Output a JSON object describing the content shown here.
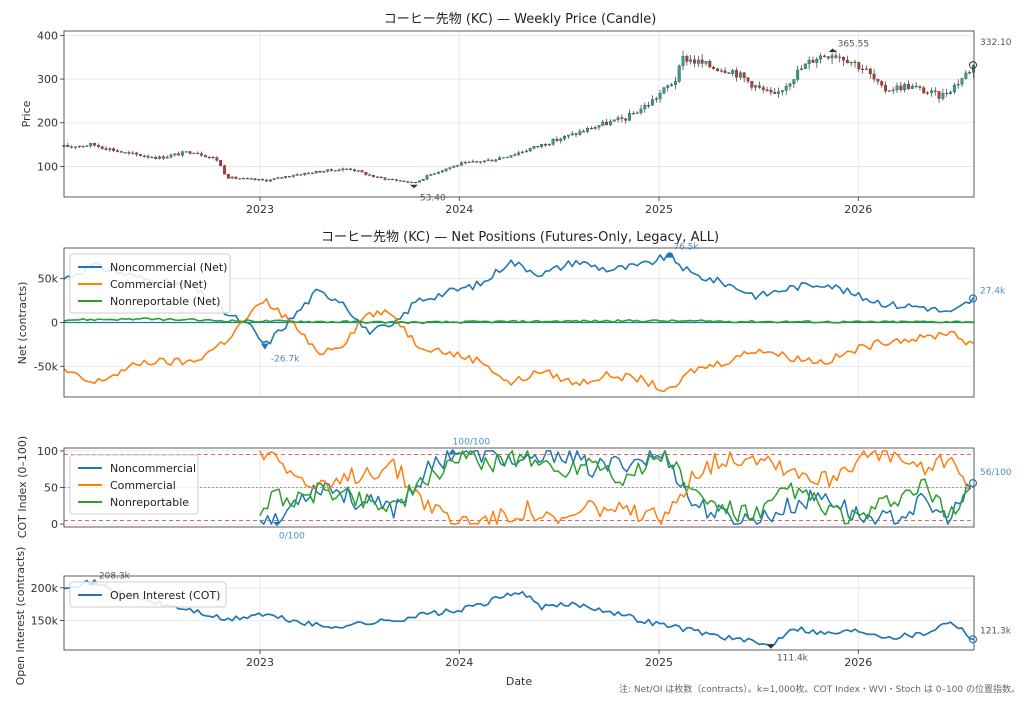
{
  "chart_data": [
    {
      "type": "candlestick",
      "title": "コーヒー先物 (KC) — Weekly Price (Candle)",
      "ylabel": "Price",
      "ylim": [
        30,
        410
      ],
      "y_ticks": [
        "100",
        "200",
        "300",
        "400"
      ],
      "x_ticks": [
        "2023",
        "2024",
        "2025",
        "2026"
      ],
      "series_approx_close": [
        [
          "2022-01-07",
          145
        ],
        [
          "2022-03-01",
          150
        ],
        [
          "2022-05-01",
          130
        ],
        [
          "2022-07-01",
          120
        ],
        [
          "2022-09-01",
          135
        ],
        [
          "2022-10-15",
          115
        ],
        [
          "2022-11-01",
          75
        ],
        [
          "2022-12-15",
          70
        ],
        [
          "2023-01-15",
          68
        ],
        [
          "2023-03-01",
          80
        ],
        [
          "2023-05-01",
          90
        ],
        [
          "2023-06-15",
          95
        ],
        [
          "2023-08-01",
          75
        ],
        [
          "2023-09-15",
          67
        ],
        [
          "2023-10-10",
          62
        ],
        [
          "2023-11-15",
          85
        ],
        [
          "2024-01-01",
          105
        ],
        [
          "2024-03-01",
          115
        ],
        [
          "2024-04-15",
          130
        ],
        [
          "2024-06-01",
          150
        ],
        [
          "2024-08-01",
          175
        ],
        [
          "2024-09-15",
          195
        ],
        [
          "2024-11-01",
          210
        ],
        [
          "2024-12-15",
          245
        ],
        [
          "2025-02-01",
          300
        ],
        [
          "2025-02-15",
          350
        ],
        [
          "2025-04-01",
          330
        ],
        [
          "2025-05-15",
          320
        ],
        [
          "2025-07-01",
          280
        ],
        [
          "2025-08-01",
          260
        ],
        [
          "2025-09-15",
          320
        ],
        [
          "2025-10-15",
          350
        ],
        [
          "2025-11-15",
          360
        ],
        [
          "2025-12-15",
          345
        ],
        [
          "2026-01-15",
          320
        ],
        [
          "2026-02-15",
          275
        ],
        [
          "2026-04-01",
          285
        ],
        [
          "2026-06-01",
          260
        ],
        [
          "2026-07-01",
          290
        ],
        [
          "2026-08-01",
          332
        ]
      ],
      "annotations": {
        "max": "365.55",
        "min": "53.40",
        "last": "332.10"
      }
    },
    {
      "type": "line",
      "title": "コーヒー先物 (KC) — Net Positions (Futures-Only, Legacy, ALL)",
      "ylabel": "Net (contracts)",
      "ylim": [
        -85000,
        85000
      ],
      "y_ticks": [
        "50k",
        "0",
        "-50k"
      ],
      "legend": "top-left",
      "series": [
        {
          "name": "Noncommercial (Net)",
          "color": "#1f77b4",
          "points": [
            [
              "2022-01-07",
              50000
            ],
            [
              "2022-03-01",
              65000
            ],
            [
              "2022-06-01",
              50000
            ],
            [
              "2022-09-01",
              40000
            ],
            [
              "2022-11-01",
              10000
            ],
            [
              "2022-12-15",
              -5000
            ],
            [
              "2023-01-10",
              -26700
            ],
            [
              "2023-03-01",
              5000
            ],
            [
              "2023-04-15",
              35000
            ],
            [
              "2023-06-01",
              25000
            ],
            [
              "2023-07-15",
              -10000
            ],
            [
              "2023-09-01",
              -5000
            ],
            [
              "2023-10-15",
              25000
            ],
            [
              "2023-12-15",
              35000
            ],
            [
              "2024-02-15",
              45000
            ],
            [
              "2024-04-01",
              70000
            ],
            [
              "2024-06-01",
              55000
            ],
            [
              "2024-08-01",
              70000
            ],
            [
              "2024-10-01",
              60000
            ],
            [
              "2024-12-01",
              65000
            ],
            [
              "2025-01-20",
              76500
            ],
            [
              "2025-03-01",
              55000
            ],
            [
              "2025-05-01",
              45000
            ],
            [
              "2025-07-01",
              30000
            ],
            [
              "2025-09-01",
              40000
            ],
            [
              "2025-11-01",
              45000
            ],
            [
              "2026-01-01",
              30000
            ],
            [
              "2026-03-01",
              20000
            ],
            [
              "2026-05-01",
              18000
            ],
            [
              "2026-06-20",
              10000
            ],
            [
              "2026-08-01",
              27400
            ]
          ]
        },
        {
          "name": "Commercial (Net)",
          "color": "#ff7f0e",
          "points": [
            [
              "2022-01-07",
              -55000
            ],
            [
              "2022-03-01",
              -70000
            ],
            [
              "2022-06-01",
              -45000
            ],
            [
              "2022-09-01",
              -45000
            ],
            [
              "2022-11-01",
              -20000
            ],
            [
              "2022-12-15",
              10000
            ],
            [
              "2023-01-10",
              25000
            ],
            [
              "2023-03-01",
              0
            ],
            [
              "2023-04-15",
              -35000
            ],
            [
              "2023-06-01",
              -25000
            ],
            [
              "2023-07-15",
              10000
            ],
            [
              "2023-09-01",
              10000
            ],
            [
              "2023-10-15",
              -25000
            ],
            [
              "2023-12-15",
              -35000
            ],
            [
              "2024-02-15",
              -45000
            ],
            [
              "2024-04-01",
              -70000
            ],
            [
              "2024-06-01",
              -55000
            ],
            [
              "2024-08-01",
              -70000
            ],
            [
              "2024-10-01",
              -60000
            ],
            [
              "2024-12-01",
              -65000
            ],
            [
              "2025-01-20",
              -80000
            ],
            [
              "2025-03-01",
              -55000
            ],
            [
              "2025-05-01",
              -45000
            ],
            [
              "2025-07-01",
              -30000
            ],
            [
              "2025-09-01",
              -40000
            ],
            [
              "2025-11-01",
              -45000
            ],
            [
              "2026-01-01",
              -30000
            ],
            [
              "2026-03-01",
              -20000
            ],
            [
              "2026-05-01",
              -18000
            ],
            [
              "2026-06-20",
              -10000
            ],
            [
              "2026-08-01",
              -28000
            ]
          ]
        },
        {
          "name": "Nonreportable (Net)",
          "color": "#2ca02c",
          "points": [
            [
              "2022-01-07",
              3000
            ],
            [
              "2022-06-01",
              4000
            ],
            [
              "2022-11-01",
              2000
            ],
            [
              "2023-04-15",
              1000
            ],
            [
              "2023-10-15",
              0
            ],
            [
              "2024-04-01",
              1000
            ],
            [
              "2024-12-01",
              2000
            ],
            [
              "2025-07-01",
              1000
            ],
            [
              "2026-01-01",
              500
            ],
            [
              "2026-08-01",
              1000
            ]
          ]
        }
      ],
      "annotations": {
        "max": "76.5k",
        "min": "-26.7k",
        "last": "27.4k"
      }
    },
    {
      "type": "line",
      "ylabel": "COT Index (0–100)",
      "ylim": [
        -4,
        104
      ],
      "y_ticks": [
        "100",
        "50",
        "0"
      ],
      "legend": "top-left",
      "reference_lines": [
        95,
        50,
        5
      ],
      "series": [
        {
          "name": "Noncommercial",
          "color": "#1f77b4",
          "points": [
            [
              "2023-01-01",
              10
            ],
            [
              "2023-02-01",
              0
            ],
            [
              "2023-03-15",
              40
            ],
            [
              "2023-05-01",
              55
            ],
            [
              "2023-07-01",
              30
            ],
            [
              "2023-09-01",
              20
            ],
            [
              "2023-11-01",
              70
            ],
            [
              "2023-12-20",
              100
            ],
            [
              "2024-03-01",
              95
            ],
            [
              "2024-05-01",
              80
            ],
            [
              "2024-07-01",
              100
            ],
            [
              "2024-09-01",
              75
            ],
            [
              "2024-11-01",
              85
            ],
            [
              "2025-01-15",
              95
            ],
            [
              "2025-03-01",
              30
            ],
            [
              "2025-05-01",
              10
            ],
            [
              "2025-07-01",
              5
            ],
            [
              "2025-09-01",
              25
            ],
            [
              "2025-11-01",
              40
            ],
            [
              "2026-01-01",
              10
            ],
            [
              "2026-03-01",
              5
            ],
            [
              "2026-05-01",
              30
            ],
            [
              "2026-06-15",
              5
            ],
            [
              "2026-08-01",
              56
            ]
          ]
        },
        {
          "name": "Commercial",
          "color": "#ff7f0e",
          "points": [
            [
              "2023-01-01",
              95
            ],
            [
              "2023-02-01",
              100
            ],
            [
              "2023-03-15",
              60
            ],
            [
              "2023-05-01",
              45
            ],
            [
              "2023-07-01",
              70
            ],
            [
              "2023-09-01",
              80
            ],
            [
              "2023-11-01",
              30
            ],
            [
              "2023-12-20",
              5
            ],
            [
              "2024-03-01",
              5
            ],
            [
              "2024-05-01",
              20
            ],
            [
              "2024-07-01",
              0
            ],
            [
              "2024-09-01",
              25
            ],
            [
              "2024-11-01",
              15
            ],
            [
              "2025-01-15",
              5
            ],
            [
              "2025-03-01",
              70
            ],
            [
              "2025-05-01",
              90
            ],
            [
              "2025-07-01",
              95
            ],
            [
              "2025-09-01",
              75
            ],
            [
              "2025-11-01",
              60
            ],
            [
              "2026-01-01",
              90
            ],
            [
              "2026-03-01",
              95
            ],
            [
              "2026-05-01",
              70
            ],
            [
              "2026-06-15",
              95
            ],
            [
              "2026-08-01",
              44
            ]
          ]
        },
        {
          "name": "Nonreportable",
          "color": "#2ca02c",
          "points": [
            [
              "2023-01-01",
              20
            ],
            [
              "2023-02-01",
              40
            ],
            [
              "2023-03-15",
              30
            ],
            [
              "2023-05-01",
              50
            ],
            [
              "2023-07-01",
              35
            ],
            [
              "2023-09-01",
              25
            ],
            [
              "2023-11-01",
              55
            ],
            [
              "2023-12-20",
              90
            ],
            [
              "2024-03-01",
              85
            ],
            [
              "2024-05-01",
              95
            ],
            [
              "2024-07-01",
              70
            ],
            [
              "2024-09-01",
              90
            ],
            [
              "2024-11-01",
              60
            ],
            [
              "2025-01-15",
              100
            ],
            [
              "2025-03-01",
              40
            ],
            [
              "2025-05-01",
              20
            ],
            [
              "2025-07-01",
              10
            ],
            [
              "2025-09-01",
              50
            ],
            [
              "2025-11-01",
              20
            ],
            [
              "2026-01-01",
              5
            ],
            [
              "2026-03-01",
              30
            ],
            [
              "2026-05-01",
              50
            ],
            [
              "2026-06-15",
              10
            ],
            [
              "2026-08-01",
              60
            ]
          ]
        }
      ],
      "annotations": {
        "max": "100/100",
        "min": "0/100",
        "last": "56/100"
      }
    },
    {
      "type": "line",
      "xlabel": "Date",
      "ylabel": "Open Interest (contracts)",
      "ylim": [
        105000,
        218000
      ],
      "y_ticks": [
        "200k",
        "150k"
      ],
      "x_ticks": [
        "2023",
        "2024",
        "2025",
        "2026"
      ],
      "legend": "top-left",
      "series": [
        {
          "name": "Open Interest (COT)",
          "color": "#1f77b4",
          "points": [
            [
              "2022-01-07",
              203000
            ],
            [
              "2022-03-01",
              208300
            ],
            [
              "2022-05-01",
              190000
            ],
            [
              "2022-07-01",
              175000
            ],
            [
              "2022-09-01",
              165000
            ],
            [
              "2022-11-01",
              150000
            ],
            [
              "2023-01-01",
              160000
            ],
            [
              "2023-03-01",
              150000
            ],
            [
              "2023-05-01",
              140000
            ],
            [
              "2023-07-01",
              145000
            ],
            [
              "2023-09-01",
              150000
            ],
            [
              "2023-11-01",
              160000
            ],
            [
              "2024-01-01",
              165000
            ],
            [
              "2024-03-01",
              180000
            ],
            [
              "2024-04-20",
              195000
            ],
            [
              "2024-06-01",
              170000
            ],
            [
              "2024-08-01",
              175000
            ],
            [
              "2024-10-01",
              165000
            ],
            [
              "2024-12-01",
              150000
            ],
            [
              "2025-02-01",
              140000
            ],
            [
              "2025-04-01",
              130000
            ],
            [
              "2025-06-01",
              120000
            ],
            [
              "2025-07-25",
              111400
            ],
            [
              "2025-09-01",
              140000
            ],
            [
              "2025-11-01",
              130000
            ],
            [
              "2026-01-01",
              135000
            ],
            [
              "2026-03-01",
              125000
            ],
            [
              "2026-05-01",
              130000
            ],
            [
              "2026-06-20",
              150000
            ],
            [
              "2026-08-01",
              121300
            ]
          ]
        }
      ],
      "annotations": {
        "max": "208.3k",
        "min": "111.4k",
        "last": "121.3k"
      }
    }
  ],
  "footnote": "注: Net/OI は枚数（contracts）。k=1,000枚。COT Index・WVI・Stoch は 0–100 の位置指数。"
}
